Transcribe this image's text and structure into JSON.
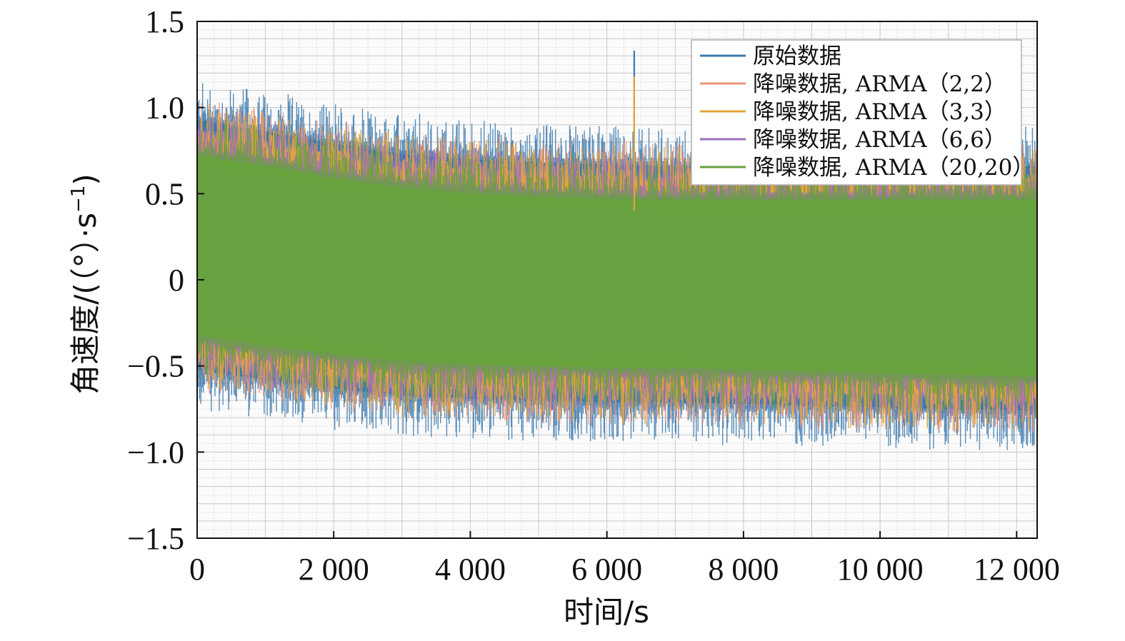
{
  "chart_data": {
    "type": "line",
    "xlabel": "时间/s",
    "ylabel_main": "角速度/(（°）·s",
    "ylabel_sup": "−1",
    "ylabel_close": ")",
    "xlim": [
      0,
      12300
    ],
    "ylim": [
      -1.5,
      1.5
    ],
    "x_ticks": [
      0,
      2000,
      4000,
      6000,
      8000,
      10000,
      12000
    ],
    "x_tick_labels": [
      "0",
      "2 000",
      "4 000",
      "6 000",
      "8 000",
      "10 000",
      "12 000"
    ],
    "y_ticks": [
      1.5,
      1.0,
      0.5,
      0,
      -0.5,
      -1.0,
      -1.5
    ],
    "y_tick_labels": [
      "1.5",
      "1.0",
      "0.5",
      "0",
      "−0.5",
      "−1.0",
      "−1.5"
    ],
    "grid": true,
    "legend_position": "top-right",
    "series": [
      {
        "name": "原始数据",
        "color": "#3a78ad",
        "envelope_upper": [
          0.93,
          0.86,
          0.79,
          0.73,
          0.7,
          0.68,
          0.67,
          0.66,
          0.66,
          0.66,
          0.66,
          0.66,
          0.66
        ],
        "envelope_lower": [
          -0.52,
          -0.58,
          -0.63,
          -0.67,
          -0.69,
          -0.7,
          -0.71,
          -0.71,
          -0.72,
          -0.73,
          -0.74,
          -0.75,
          -0.76
        ]
      },
      {
        "name": "降噪数据, ARMA（2,2）",
        "color": "#e8937a",
        "envelope_upper": [
          0.82,
          0.76,
          0.69,
          0.63,
          0.6,
          0.58,
          0.57,
          0.56,
          0.56,
          0.56,
          0.56,
          0.56,
          0.56
        ],
        "envelope_lower": [
          -0.42,
          -0.48,
          -0.53,
          -0.57,
          -0.59,
          -0.6,
          -0.61,
          -0.61,
          -0.62,
          -0.63,
          -0.64,
          -0.65,
          -0.66
        ]
      },
      {
        "name": "降噪数据, ARMA（3,3）",
        "color": "#e0a43a",
        "envelope_upper": [
          0.8,
          0.74,
          0.67,
          0.61,
          0.58,
          0.56,
          0.55,
          0.54,
          0.54,
          0.54,
          0.54,
          0.54,
          0.54
        ],
        "envelope_lower": [
          -0.4,
          -0.46,
          -0.51,
          -0.55,
          -0.57,
          -0.58,
          -0.59,
          -0.59,
          -0.6,
          -0.61,
          -0.62,
          -0.63,
          -0.64
        ]
      },
      {
        "name": "降噪数据, ARMA（6,6）",
        "color": "#9b6fb8",
        "envelope_upper": [
          0.74,
          0.68,
          0.61,
          0.55,
          0.52,
          0.5,
          0.49,
          0.48,
          0.48,
          0.48,
          0.48,
          0.48,
          0.48
        ],
        "envelope_lower": [
          -0.34,
          -0.4,
          -0.45,
          -0.49,
          -0.51,
          -0.52,
          -0.53,
          -0.53,
          -0.54,
          -0.55,
          -0.56,
          -0.57,
          -0.58
        ]
      },
      {
        "name": "降噪数据, ARMA（20,20）",
        "color": "#67a23c",
        "envelope_upper": [
          0.72,
          0.66,
          0.59,
          0.53,
          0.5,
          0.48,
          0.47,
          0.46,
          0.46,
          0.46,
          0.46,
          0.46,
          0.46
        ],
        "envelope_lower": [
          -0.32,
          -0.38,
          -0.43,
          -0.47,
          -0.49,
          -0.5,
          -0.51,
          -0.51,
          -0.52,
          -0.53,
          -0.54,
          -0.55,
          -0.56
        ]
      }
    ],
    "envelope_x": [
      0,
      1000,
      2000,
      3000,
      4000,
      5000,
      6000,
      7000,
      8000,
      9000,
      10000,
      11000,
      12300
    ],
    "spikes": [
      {
        "x": 6400,
        "y": 1.33,
        "series": "原始数据"
      },
      {
        "x": 6400,
        "y": 1.18,
        "series": "降噪数据, ARMA（3,3）"
      }
    ]
  }
}
